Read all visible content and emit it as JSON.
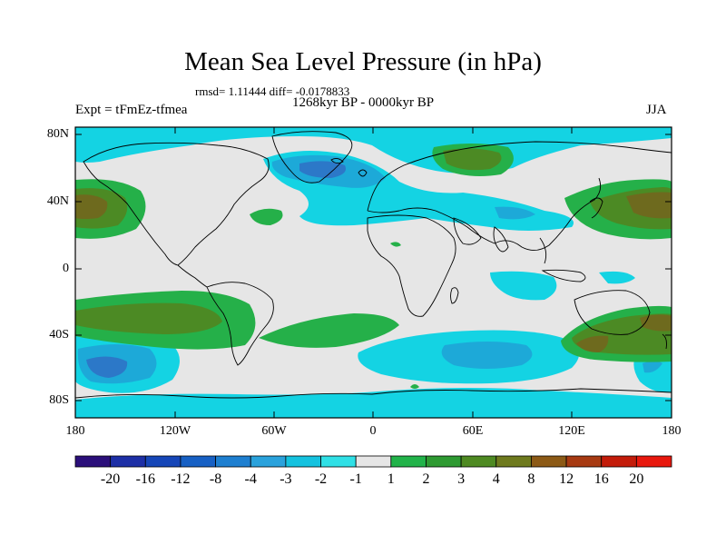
{
  "map": {
    "title": "Mean Sea Level Pressure (in hPa)",
    "stats_line": "rmsd= 1.11444 diff= -0.0178833",
    "period": "1268kyr BP - 0000kyr BP",
    "experiment": "Expt = tFmEz-tfmea",
    "season": "JJA",
    "lat_labels": [
      "80N",
      "40N",
      "0",
      "40S",
      "80S"
    ],
    "lon_labels": [
      "180",
      "120W",
      "60W",
      "0",
      "60E",
      "120E",
      "180"
    ]
  },
  "colorbar": {
    "labels": [
      "-20",
      "-16",
      "-12",
      "-8",
      "-4",
      "-3",
      "-2",
      "-1",
      "1",
      "2",
      "3",
      "4",
      "8",
      "12",
      "16",
      "20"
    ],
    "colors": [
      "#2b0f7a",
      "#1d2fa6",
      "#1646b8",
      "#1760c4",
      "#1e7fd0",
      "#2aa2dc",
      "#14c2df",
      "#2fe0e6",
      "#e6e6e6",
      "#22b34a",
      "#2e9a32",
      "#4e8a22",
      "#6e7a1e",
      "#8c5a16",
      "#a73a12",
      "#c31c0a",
      "#e8180e"
    ]
  },
  "palette": {
    "ocean_neutral": "#e6e6e6",
    "neg_1": "#14d3e3",
    "neg_2": "#1da9d8",
    "neg_3": "#2c78c8",
    "pos_1": "#25b049",
    "pos_2": "#4c8a24",
    "pos_3": "#6e6a1e",
    "coast": "#000000"
  }
}
